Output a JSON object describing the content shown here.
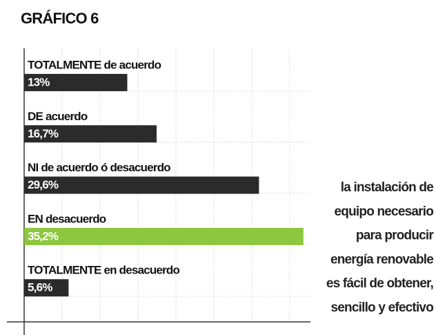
{
  "chart_data": {
    "type": "hbar",
    "title": "GRÁFICO 6",
    "categories": [
      "TOTALMENTE de acuerdo",
      "DE acuerdo",
      "NI de acuerdo ó desacuerdo",
      "EN desacuerdo",
      "TOTALMENTE en desacuerdo"
    ],
    "values": [
      13,
      16.7,
      29.6,
      35.2,
      5.6
    ],
    "value_labels": [
      "13%",
      "16,7%",
      "29,6%",
      "35,2%",
      "5,6%"
    ],
    "colors": [
      "#2b2b2b",
      "#2b2b2b",
      "#2b2b2b",
      "#8dc63f",
      "#2b2b2b"
    ],
    "xlim": [
      0,
      36
    ],
    "annotation": [
      "la instalación de",
      "equipo necesario",
      "para producir",
      "energía renovable",
      "es fácil  de obtener,",
      "sencillo y efectivo"
    ]
  }
}
